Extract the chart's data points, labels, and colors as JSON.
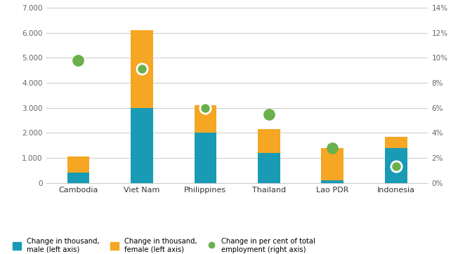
{
  "categories": [
    "Cambodia",
    "Viet Nam",
    "Philippines",
    "Thailand",
    "Lao PDR",
    "Indonesia"
  ],
  "male_values": [
    400,
    3000,
    2000,
    1200,
    100,
    1400
  ],
  "female_values": [
    650,
    3100,
    1100,
    950,
    1300,
    450
  ],
  "dot_pct": [
    9.8,
    9.1,
    6.0,
    5.5,
    2.8,
    1.3
  ],
  "bar_color_male": "#1a9bb5",
  "bar_color_female": "#f5a623",
  "dot_color": "#6ab04c",
  "dot_edge_color": "#ffffff",
  "left_ylim": [
    0,
    7000
  ],
  "right_ylim": [
    0,
    14
  ],
  "left_yticks": [
    0,
    1000,
    2000,
    3000,
    4000,
    5000,
    6000,
    7000
  ],
  "right_yticks": [
    0,
    2,
    4,
    6,
    8,
    10,
    12,
    14
  ],
  "left_yticklabels": [
    "0",
    "1.000",
    "2.000",
    "3.000",
    "4.000",
    "5.000",
    "6.000",
    "7.000"
  ],
  "right_yticklabels": [
    "0%",
    "2%",
    "4%",
    "6%",
    "8%",
    "10%",
    "12%",
    "14%"
  ],
  "legend_labels": [
    "Change in thousand,\nmale (left axis)",
    "Change in thousand,\nfemale (left axis)",
    "Change in per cent of total\nemployment (right axis)"
  ],
  "background_color": "#ffffff",
  "grid_color": "#cccccc",
  "bar_width": 0.35
}
